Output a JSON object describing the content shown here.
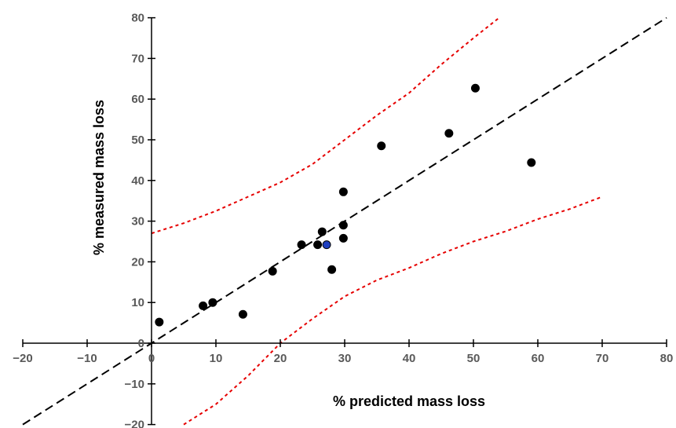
{
  "chart_data": {
    "type": "scatter",
    "title": "",
    "xlabel": "% predicted mass loss",
    "ylabel": "% measured mass loss",
    "xlim": [
      -20,
      80
    ],
    "ylim": [
      -20,
      80
    ],
    "x_ticks": [
      -20,
      -10,
      0,
      10,
      20,
      30,
      40,
      50,
      60,
      70,
      80
    ],
    "y_ticks": [
      -20,
      -10,
      0,
      10,
      20,
      30,
      40,
      50,
      60,
      70,
      80
    ],
    "x_tick_labels": [
      "−20",
      "−10",
      "0",
      "10",
      "20",
      "30",
      "40",
      "50",
      "60",
      "70",
      "80"
    ],
    "y_tick_labels": [
      "−20",
      "−10",
      "0",
      "10",
      "20",
      "30",
      "40",
      "50",
      "60",
      "70",
      "80"
    ],
    "grid": false,
    "series": [
      {
        "color": "#000000",
        "points": [
          [
            1.2,
            5.2
          ],
          [
            8.0,
            9.2
          ],
          [
            9.5,
            10.0
          ],
          [
            14.2,
            7.1
          ],
          [
            18.8,
            17.7
          ],
          [
            23.3,
            24.2
          ],
          [
            25.8,
            24.2
          ],
          [
            26.5,
            27.4
          ],
          [
            28.0,
            18.1
          ],
          [
            29.8,
            37.2
          ],
          [
            29.8,
            29.0
          ],
          [
            29.8,
            25.8
          ],
          [
            35.7,
            48.5
          ],
          [
            46.2,
            51.6
          ],
          [
            50.3,
            62.7
          ],
          [
            59.0,
            44.4
          ]
        ]
      },
      {
        "color": "#1f3fbf",
        "points": [
          [
            27.2,
            24.2
          ]
        ]
      }
    ],
    "lines": [
      {
        "style": "dashed",
        "color": "#000000",
        "x": [
          -20,
          80
        ],
        "y": [
          -20,
          80
        ]
      },
      {
        "style": "dotted",
        "color": "#e60000",
        "x": [
          0,
          5,
          10,
          15,
          20,
          25,
          30,
          35,
          40,
          45,
          50,
          54
        ],
        "y": [
          27,
          29.5,
          32.5,
          36,
          39.5,
          44,
          50,
          56,
          61.5,
          68.5,
          75,
          80
        ]
      },
      {
        "style": "dotted",
        "color": "#e60000",
        "x": [
          5,
          10,
          15,
          20,
          25,
          30,
          35,
          40,
          45,
          50,
          55,
          60,
          65,
          70
        ],
        "y": [
          -20,
          -15,
          -8,
          0,
          6,
          11.5,
          15.5,
          18.5,
          22,
          25,
          27.5,
          30.5,
          33,
          36
        ]
      }
    ]
  }
}
